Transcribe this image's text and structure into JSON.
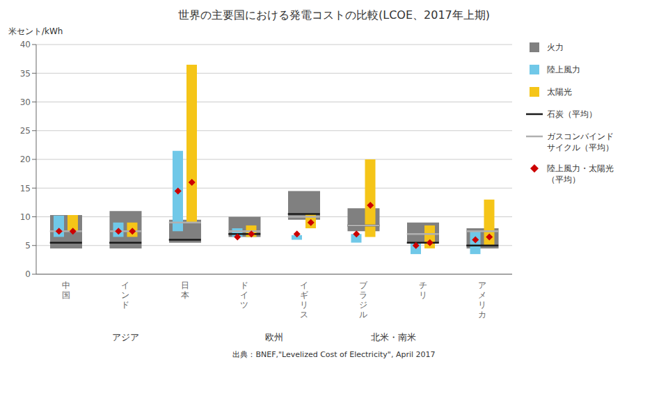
{
  "chart_data": {
    "type": "bar",
    "title": "世界の主要国における発電コストの比較(LCOE、2017年上期)",
    "ylabel": "米セント/kWh",
    "source": "出典：BNEF,\"Levelized Cost of Electricity\", April 2017",
    "categories": [
      "中\n国",
      "イ\nン\nド",
      "日\n本",
      "ド\nイ\nツ",
      "イ\nギ\nリ\nス",
      "ブ\nラ\nジ\nル",
      "チ\nリ",
      "ア\nメ\nリ\nカ"
    ],
    "annotations": [
      {
        "text": "アジア",
        "x": 1.0
      },
      {
        "text": "欧州",
        "x": 3.5
      },
      {
        "text": "北米・南米",
        "x": 5.5
      }
    ],
    "series": [
      {
        "name": "火力",
        "type": "range_bar",
        "color": "#808080",
        "values": [
          [
            4.5,
            10.3
          ],
          [
            4.5,
            11.0
          ],
          [
            5.5,
            9.5
          ],
          [
            6.5,
            10.0
          ],
          [
            9.5,
            14.5
          ],
          [
            7.5,
            11.5
          ],
          [
            5.5,
            9.0
          ],
          [
            4.5,
            8.0
          ]
        ]
      },
      {
        "name": "陸上風力",
        "type": "range_bar",
        "color": "#70C8E8",
        "values": [
          [
            6.5,
            10.2
          ],
          [
            6.5,
            9.0
          ],
          [
            7.5,
            21.5
          ],
          [
            6.5,
            8.0
          ],
          [
            6.0,
            6.8
          ],
          [
            5.5,
            7.0
          ],
          [
            3.5,
            5.5
          ],
          [
            3.5,
            7.5
          ]
        ]
      },
      {
        "name": "太陽光",
        "type": "range_bar",
        "color": "#F5C518",
        "values": [
          [
            7.5,
            10.3
          ],
          [
            6.5,
            9.0
          ],
          [
            9.0,
            36.5
          ],
          [
            6.5,
            8.5
          ],
          [
            8.0,
            10.5
          ],
          [
            6.5,
            20.0
          ],
          [
            4.5,
            8.5
          ],
          [
            5.0,
            13.0
          ]
        ]
      },
      {
        "name": "石炭（平均）",
        "type": "hline",
        "color": "#1a1a1a",
        "values": [
          5.5,
          5.5,
          6.0,
          7.0,
          10.5,
          8.5,
          5.5,
          5.0
        ]
      },
      {
        "name": "ガスコンバインド\nサイクル（平均）",
        "type": "hline",
        "color": "#b0b0b0",
        "values": [
          7.5,
          7.5,
          9.0,
          7.5,
          10.0,
          8.5,
          7.0,
          7.5
        ]
      },
      {
        "name": "陸上風力・太陽光\n（平均）",
        "type": "scatter",
        "marker": "diamond",
        "color": "#cc0000",
        "values": [
          [
            7.5,
            7.5
          ],
          [
            7.5,
            7.5
          ],
          [
            14.5,
            16.0
          ],
          [
            6.5,
            7.0
          ],
          [
            7.0,
            9.0
          ],
          [
            7.0,
            12.0
          ],
          [
            5.0,
            5.5
          ],
          [
            6.0,
            6.5
          ]
        ]
      }
    ],
    "ylim": [
      0,
      40
    ],
    "yticks": [
      0,
      5,
      10,
      15,
      20,
      25,
      30,
      35,
      40
    ],
    "grid": true,
    "legend": "right"
  }
}
